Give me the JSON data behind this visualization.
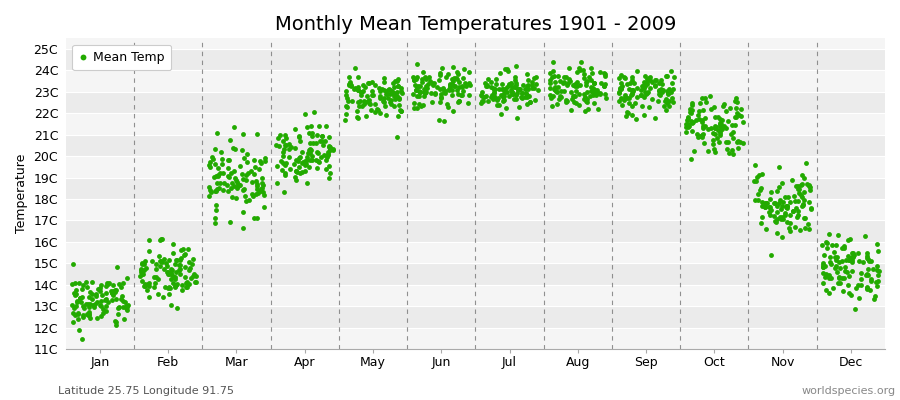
{
  "title": "Monthly Mean Temperatures 1901 - 2009",
  "ylabel": "Temperature",
  "subtitle": "Latitude 25.75 Longitude 91.75",
  "watermark": "worldspecies.org",
  "legend_label": "Mean Temp",
  "dot_color": "#22aa00",
  "background_color": "#ffffff",
  "plot_bg_even": "#ebebeb",
  "plot_bg_odd": "#f5f5f5",
  "grid_color": "#ffffff",
  "dashed_color": "#777777",
  "ylim": [
    11,
    25.5
  ],
  "yticks": [
    11,
    12,
    13,
    14,
    15,
    16,
    17,
    18,
    19,
    20,
    21,
    22,
    23,
    24,
    25
  ],
  "months": [
    "Jan",
    "Feb",
    "Mar",
    "Apr",
    "May",
    "Jun",
    "Jul",
    "Aug",
    "Sep",
    "Oct",
    "Nov",
    "Dec"
  ],
  "mean_temps": [
    13.2,
    14.5,
    19.0,
    20.2,
    22.8,
    23.1,
    23.1,
    23.1,
    23.0,
    21.5,
    17.8,
    14.8
  ],
  "std_temps": [
    0.65,
    0.75,
    0.85,
    0.7,
    0.55,
    0.5,
    0.45,
    0.5,
    0.55,
    0.75,
    0.85,
    0.75
  ],
  "n_years": 109,
  "marker_size": 3.5,
  "title_fontsize": 14,
  "label_fontsize": 9,
  "tick_fontsize": 9,
  "dot_alpha": 1.0
}
